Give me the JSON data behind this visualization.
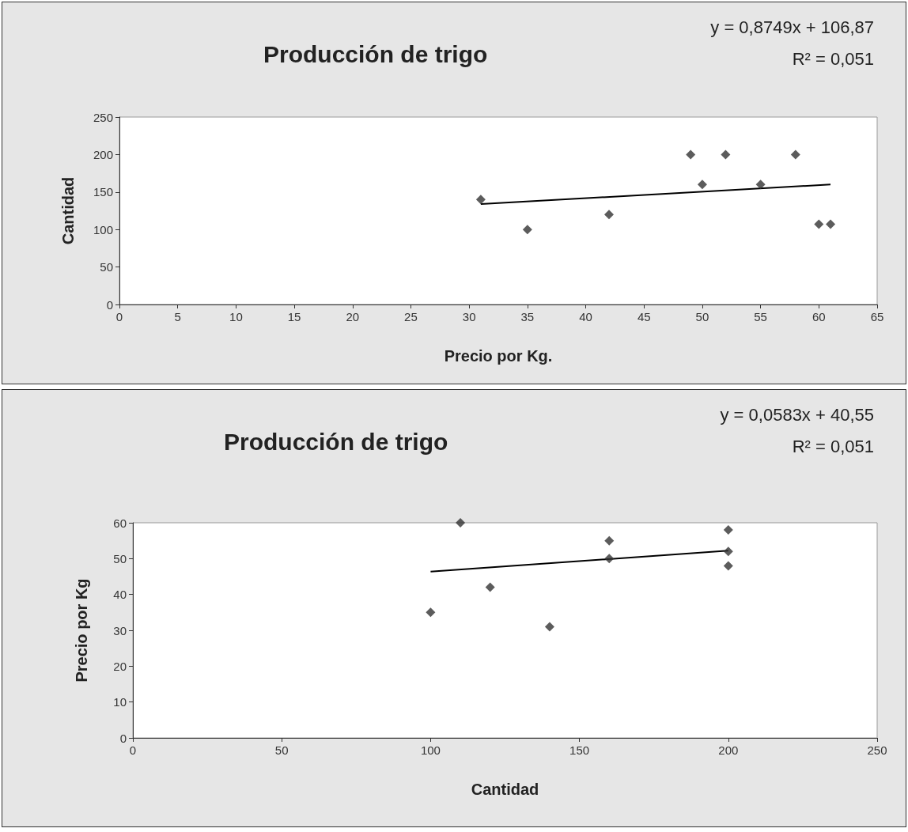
{
  "chart_data": [
    {
      "type": "scatter",
      "title": "Producción de trigo",
      "xlabel": "Precio por Kg.",
      "ylabel": "Cantidad",
      "annotations": [
        "y = 0,8749x + 106,87",
        "R² = 0,051"
      ],
      "xlim": [
        0,
        65
      ],
      "xticks": [
        0,
        5,
        10,
        15,
        20,
        25,
        30,
        35,
        40,
        45,
        50,
        55,
        60,
        65
      ],
      "ylim": [
        0,
        250
      ],
      "yticks": [
        0,
        50,
        100,
        150,
        200,
        250
      ],
      "marker": "diamond",
      "series": [
        {
          "color": "#333333",
          "x": [
            31,
            35,
            42,
            49,
            50,
            52,
            55,
            58,
            60,
            61
          ],
          "values": [
            140,
            100,
            120,
            200,
            160,
            200,
            160,
            200,
            107,
            107
          ]
        },
        {
          "type": "line",
          "color": "#000000",
          "marker": "none",
          "x": [
            31,
            61
          ],
          "values": [
            134,
            160
          ]
        }
      ]
    },
    {
      "type": "scatter",
      "title": "Producción de trigo",
      "xlabel": "Cantidad",
      "ylabel": "Precio por Kg",
      "annotations": [
        "y = 0,0583x + 40,55",
        "R² = 0,051"
      ],
      "xlim": [
        0,
        250
      ],
      "xticks": [
        0,
        50,
        100,
        150,
        200,
        250
      ],
      "ylim": [
        0,
        60
      ],
      "yticks": [
        0,
        10,
        20,
        30,
        40,
        50,
        60
      ],
      "marker": "diamond",
      "series": [
        {
          "color": "#333333",
          "x": [
            100,
            110,
            120,
            140,
            160,
            160,
            200,
            200,
            200
          ],
          "values": [
            35,
            60,
            42,
            31,
            55,
            50,
            58,
            52,
            48
          ]
        },
        {
          "type": "line",
          "color": "#000000",
          "marker": "none",
          "x": [
            100,
            200
          ],
          "values": [
            46.4,
            52.2
          ]
        }
      ]
    }
  ]
}
